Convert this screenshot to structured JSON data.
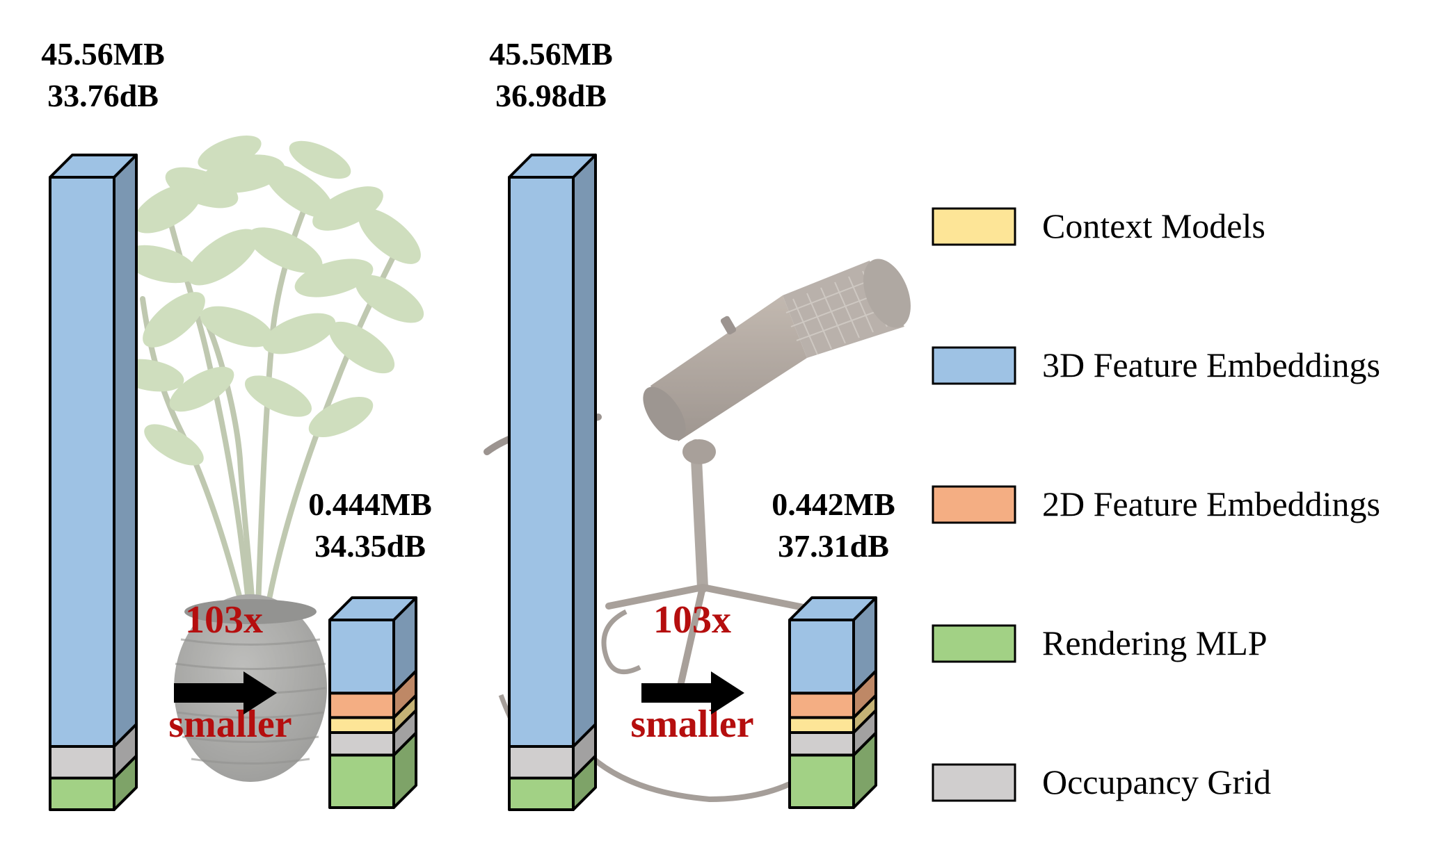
{
  "chart_data": {
    "type": "bar",
    "stacked": true,
    "style": "3d-stacked-column",
    "stack_order_bottom_to_top": [
      "Rendering MLP",
      "Occupancy Grid",
      "Context Models",
      "2D Feature Embeddings",
      "3D Feature Embeddings"
    ],
    "legend": {
      "placement": "right",
      "entries": [
        {
          "key": "context_models",
          "label": "Context Models",
          "color": "#FDE597"
        },
        {
          "key": "feature_3d",
          "label": "3D Feature Embeddings",
          "color": "#9EC2E4"
        },
        {
          "key": "feature_2d",
          "label": "2D Feature Embeddings",
          "color": "#F4AE83"
        },
        {
          "key": "rendering_mlp",
          "label": "Rendering MLP",
          "color": "#A2D185"
        },
        {
          "key": "occupancy_grid",
          "label": "Occupancy Grid",
          "color": "#D0CECE"
        }
      ]
    },
    "groups": [
      {
        "scene_image": "potted-plant",
        "ratio_value": "103x",
        "ratio_word": "smaller",
        "original": {
          "size": "45.56MB",
          "psnr": "33.76dB",
          "size_mb": 45.56,
          "segments": {
            "rendering_mlp": 0.05,
            "occupancy_grid": 0.05,
            "context_models": 0,
            "feature_2d": 0,
            "feature_3d": 0.9
          }
        },
        "compressed": {
          "size": "0.444MB",
          "psnr": "34.35dB",
          "size_mb": 0.444,
          "segments": {
            "rendering_mlp": 0.28,
            "occupancy_grid": 0.12,
            "context_models": 0.08,
            "feature_2d": 0.13,
            "feature_3d": 0.39
          }
        }
      },
      {
        "scene_image": "microphone",
        "ratio_value": "103x",
        "ratio_word": "smaller",
        "original": {
          "size": "45.56MB",
          "psnr": "36.98dB",
          "size_mb": 45.56,
          "segments": {
            "rendering_mlp": 0.05,
            "occupancy_grid": 0.05,
            "context_models": 0,
            "feature_2d": 0,
            "feature_3d": 0.9
          }
        },
        "compressed": {
          "size": "0.442MB",
          "psnr": "37.31dB",
          "size_mb": 0.442,
          "segments": {
            "rendering_mlp": 0.28,
            "occupancy_grid": 0.12,
            "context_models": 0.08,
            "feature_2d": 0.13,
            "feature_3d": 0.39
          }
        }
      }
    ],
    "colors": {
      "accent_red": "#B50E0E",
      "arrow": "#000000",
      "outline": "#000000"
    }
  }
}
